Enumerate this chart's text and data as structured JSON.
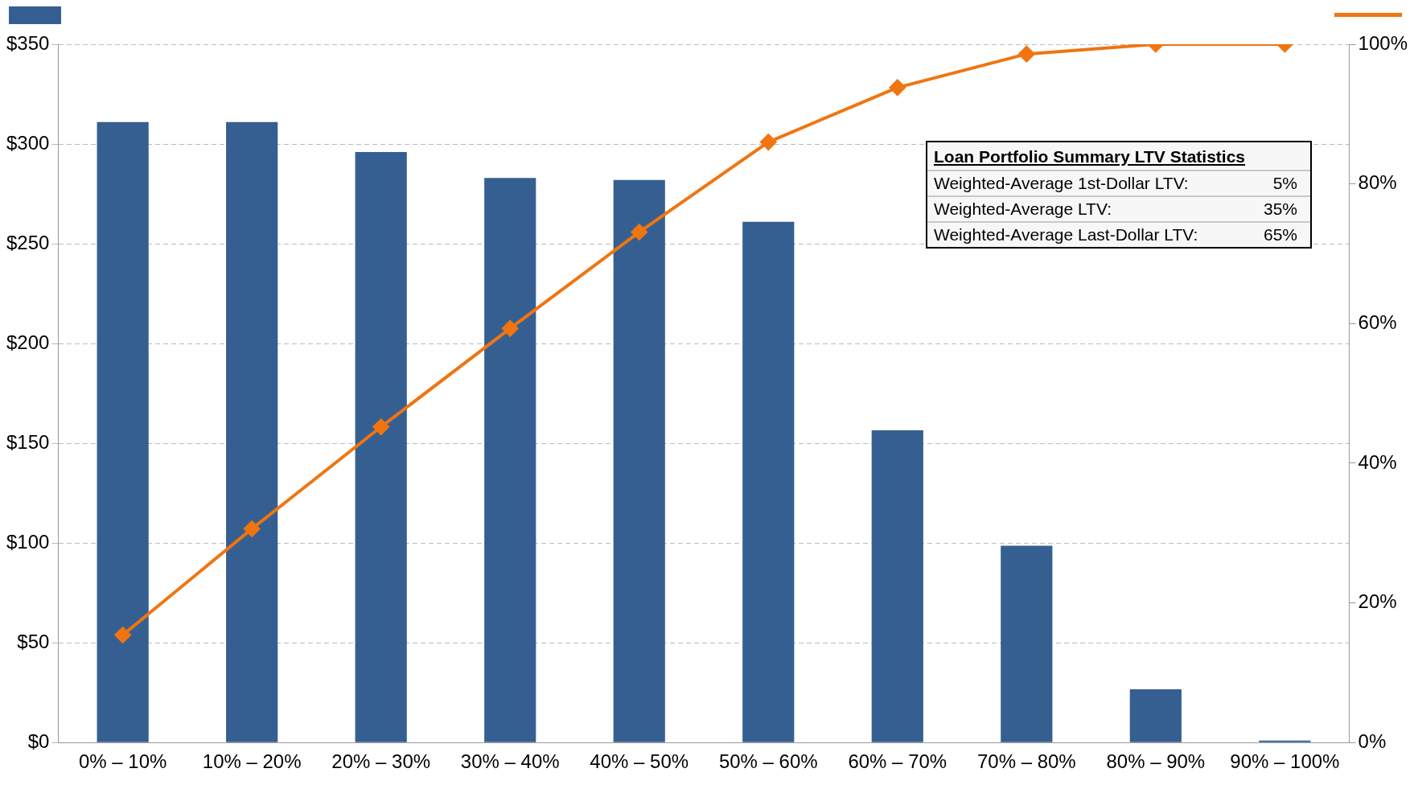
{
  "chart_data": {
    "type": "bar",
    "categories": [
      "0% – 10%",
      "10% – 20%",
      "20% – 30%",
      "30% – 40%",
      "40% – 50%",
      "50% – 60%",
      "60% – 70%",
      "70% – 80%",
      "80% – 90%",
      "90% – 100%"
    ],
    "series": [
      {
        "color": "#365f91",
        "values": [
          311,
          311,
          296,
          283,
          282,
          261,
          156.5,
          98.6,
          26.7,
          1
        ]
      },
      {
        "type": "line",
        "axis": "y2",
        "color": "#f07510",
        "values": [
          15.4,
          30.6,
          45.2,
          59.3,
          73.1,
          86.0,
          93.8,
          98.6,
          100,
          100
        ]
      }
    ],
    "ylim": [
      0,
      350
    ],
    "yticks": [
      {
        "value": 0,
        "label": "$0"
      },
      {
        "value": 50,
        "label": "$50"
      },
      {
        "value": 100,
        "label": "$100"
      },
      {
        "value": 150,
        "label": "$150"
      },
      {
        "value": 200,
        "label": "$200"
      },
      {
        "value": 250,
        "label": "$250"
      },
      {
        "value": 300,
        "label": "$300"
      },
      {
        "value": 350,
        "label": "$350"
      }
    ],
    "y2lim": [
      0,
      100
    ],
    "y2ticks": [
      {
        "value": 0,
        "label": "0%"
      },
      {
        "value": 20,
        "label": "20%"
      },
      {
        "value": 40,
        "label": "40%"
      },
      {
        "value": 60,
        "label": "60%"
      },
      {
        "value": 80,
        "label": "80%"
      },
      {
        "value": 100,
        "label": "100%"
      }
    ],
    "grid": "y",
    "marker": "diamond",
    "line_style": "solid",
    "annotations": [
      "Loan Portfolio Summary LTV Statistics",
      "Weighted-Average 1st-Dollar LTV:",
      "5%",
      "Weighted-Average LTV:",
      "35%",
      "Weighted-Average Last-Dollar LTV:",
      "65%"
    ]
  }
}
